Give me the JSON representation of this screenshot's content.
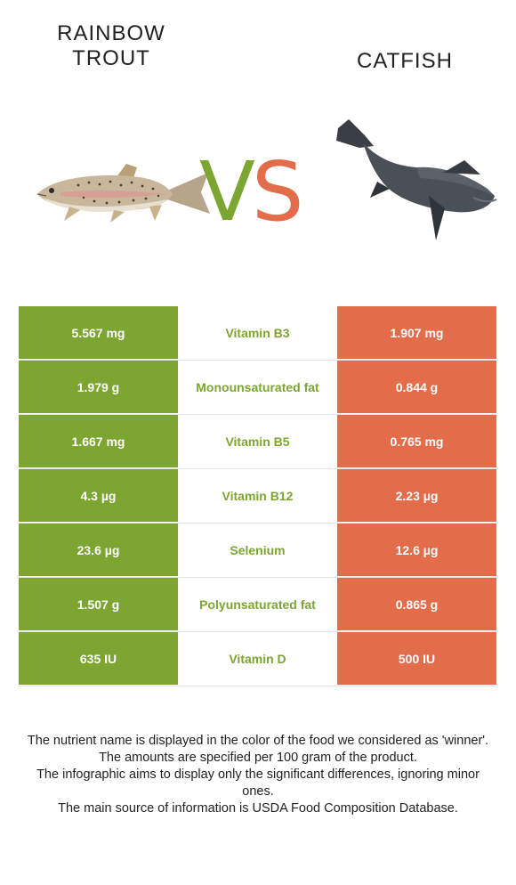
{
  "header": {
    "left_title": "RAINBOW TROUT",
    "right_title": "CATFISH",
    "vs_v": "V",
    "vs_s": "S"
  },
  "colors": {
    "winner_left": "#7da532",
    "winner_right": "#e36c4b"
  },
  "images": {
    "left": "rainbow-trout-icon",
    "right": "catfish-icon"
  },
  "rows": [
    {
      "left": "5.567 mg",
      "nutrient": "Vitamin B3",
      "right": "1.907 mg"
    },
    {
      "left": "1.979 g",
      "nutrient": "Monounsaturated fat",
      "right": "0.844 g"
    },
    {
      "left": "1.667 mg",
      "nutrient": "Vitamin B5",
      "right": "0.765 mg"
    },
    {
      "left": "4.3 µg",
      "nutrient": "Vitamin B12",
      "right": "2.23 µg"
    },
    {
      "left": "23.6 µg",
      "nutrient": "Selenium",
      "right": "12.6 µg"
    },
    {
      "left": "1.507 g",
      "nutrient": "Polyunsaturated fat",
      "right": "0.865 g"
    },
    {
      "left": "635 IU",
      "nutrient": "Vitamin D",
      "right": "500 IU"
    }
  ],
  "footnotes": [
    "The nutrient name is displayed in the color of the food we considered as 'winner'.",
    "The amounts are specified per 100 gram of the product.",
    "The infographic aims to display only the significant differences, ignoring minor ones.",
    "The main source of information is USDA Food Composition Database."
  ]
}
